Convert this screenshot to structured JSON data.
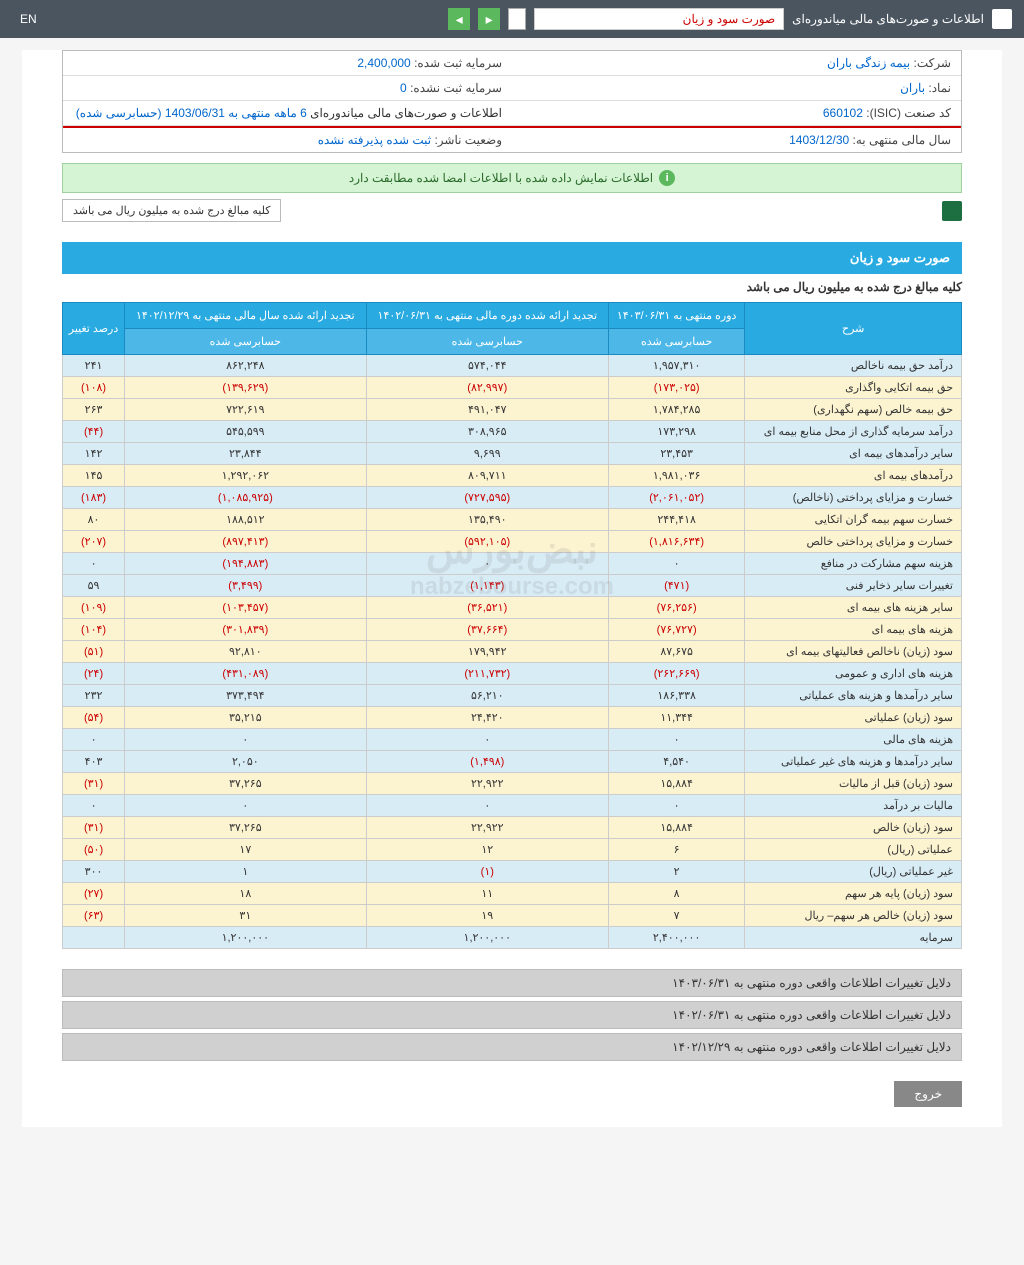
{
  "topbar": {
    "breadcrumb": "اطلاعات و صورت‌های مالی میاندوره‌ای",
    "doc_title": "صورت سود و زیان",
    "lang": "EN"
  },
  "info": {
    "company_label": "شرکت:",
    "company": "بیمه زندگی باران",
    "capital_reg_label": "سرمایه ثبت شده:",
    "capital_reg": "2,400,000",
    "symbol_label": "نماد:",
    "symbol": "باران",
    "capital_unreg_label": "سرمایه ثبت نشده:",
    "capital_unreg": "0",
    "isic_label": "کد صنعت (ISIC):",
    "isic": "660102",
    "report_label": "اطلاعات و صورت‌های مالی میاندوره‌ای",
    "report_period": "6 ماهه منتهی به 1403/06/31 (حسابرسی شده)",
    "year_end_label": "سال مالی منتهی به:",
    "year_end": "1403/12/30",
    "status_label": "وضعیت ناشر:",
    "status": "ثبت شده پذیرفته نشده"
  },
  "notice": "اطلاعات نمایش داده شده با اطلاعات امضا شده مطابقت دارد",
  "unit_notice": "کلیه مبالغ درج شده به میلیون ریال می باشد",
  "section": {
    "title": "صورت سود و زیان",
    "sub": "کلیه مبالغ درج شده به میلیون ریال می باشد"
  },
  "headers": {
    "desc": "شرح",
    "col1": "دوره منتهی به ۱۴۰۳/۰۶/۳۱",
    "col2": "تجدید ارائه شده دوره مالی منتهی به ۱۴۰۲/۰۶/۳۱",
    "col3": "تجدید ارائه شده سال مالی منتهی به ۱۴۰۲/۱۲/۲۹",
    "col4": "درصد تغییر",
    "audited": "حسابرسی شده"
  },
  "rows": [
    {
      "label": "درآمد حق بیمه ناخالص",
      "c1": "۱,۹۵۷,۳۱۰",
      "c2": "۵۷۴,۰۴۴",
      "c3": "۸۶۲,۲۴۸",
      "c4": "۲۴۱",
      "cls": "row-blue"
    },
    {
      "label": "حق بیمه اتکایی واگذاری",
      "c1": "(۱۷۳,۰۲۵)",
      "c2": "(۸۲,۹۹۷)",
      "c3": "(۱۳۹,۶۲۹)",
      "c4": "(۱۰۸)",
      "cls": "row-yellow",
      "neg": true
    },
    {
      "label": "حق بیمه خالص (سهم نگهداری)",
      "c1": "۱,۷۸۴,۲۸۵",
      "c2": "۴۹۱,۰۴۷",
      "c3": "۷۲۲,۶۱۹",
      "c4": "۲۶۳",
      "cls": "row-yellow"
    },
    {
      "label": "درآمد سرمایه گذاری از محل منابع بیمه ای",
      "c1": "۱۷۳,۲۹۸",
      "c2": "۳۰۸,۹۶۵",
      "c3": "۵۴۵,۵۹۹",
      "c4": "(۴۴)",
      "cls": "row-blue",
      "c4neg": true
    },
    {
      "label": "سایر درآمدهای بیمه ای",
      "c1": "۲۳,۴۵۳",
      "c2": "۹,۶۹۹",
      "c3": "۲۳,۸۴۴",
      "c4": "۱۴۲",
      "cls": "row-blue"
    },
    {
      "label": "درآمدهای بیمه ای",
      "c1": "۱,۹۸۱,۰۳۶",
      "c2": "۸۰۹,۷۱۱",
      "c3": "۱,۲۹۲,۰۶۲",
      "c4": "۱۴۵",
      "cls": "row-yellow"
    },
    {
      "label": "خسارت و مزایای پرداختی (ناخالص)",
      "c1": "(۲,۰۶۱,۰۵۲)",
      "c2": "(۷۲۷,۵۹۵)",
      "c3": "(۱,۰۸۵,۹۲۵)",
      "c4": "(۱۸۳)",
      "cls": "row-blue",
      "neg": true
    },
    {
      "label": "خسارت سهم بیمه گران اتکایی",
      "c1": "۲۴۴,۴۱۸",
      "c2": "۱۳۵,۴۹۰",
      "c3": "۱۸۸,۵۱۲",
      "c4": "۸۰",
      "cls": "row-yellow"
    },
    {
      "label": "خسارت و مزایای پرداختی خالص",
      "c1": "(۱,۸۱۶,۶۳۴)",
      "c2": "(۵۹۲,۱۰۵)",
      "c3": "(۸۹۷,۴۱۳)",
      "c4": "(۲۰۷)",
      "cls": "row-yellow",
      "neg": true
    },
    {
      "label": "هزینه سهم مشارکت در منافع",
      "c1": "۰",
      "c2": "۰",
      "c3": "(۱۹۴,۸۸۳)",
      "c4": "۰",
      "cls": "row-blue",
      "c3neg": true
    },
    {
      "label": "تغییرات سایر ذخایر فنی",
      "c1": "(۴۷۱)",
      "c2": "(۱,۱۴۳)",
      "c3": "(۳,۴۹۹)",
      "c4": "۵۹",
      "cls": "row-blue",
      "c1neg": true,
      "c2neg": true,
      "c3neg": true
    },
    {
      "label": "سایر هزینه های بیمه ای",
      "c1": "(۷۶,۲۵۶)",
      "c2": "(۳۶,۵۲۱)",
      "c3": "(۱۰۳,۴۵۷)",
      "c4": "(۱۰۹)",
      "cls": "row-yellow",
      "neg": true
    },
    {
      "label": "هزینه های بیمه ای",
      "c1": "(۷۶,۷۲۷)",
      "c2": "(۳۷,۶۶۴)",
      "c3": "(۳۰۱,۸۳۹)",
      "c4": "(۱۰۴)",
      "cls": "row-yellow",
      "neg": true
    },
    {
      "label": "سود (زیان) ناخالص فعالیتهای بیمه ای",
      "c1": "۸۷,۶۷۵",
      "c2": "۱۷۹,۹۴۲",
      "c3": "۹۲,۸۱۰",
      "c4": "(۵۱)",
      "cls": "row-yellow",
      "c4neg": true
    },
    {
      "label": "هزینه های اداری و عمومی",
      "c1": "(۲۶۲,۶۶۹)",
      "c2": "(۲۱۱,۷۳۲)",
      "c3": "(۴۳۱,۰۸۹)",
      "c4": "(۲۴)",
      "cls": "row-blue",
      "neg": true
    },
    {
      "label": "سایر درآمدها و هزینه های عملیاتی",
      "c1": "۱۸۶,۳۳۸",
      "c2": "۵۶,۲۱۰",
      "c3": "۳۷۳,۴۹۴",
      "c4": "۲۳۲",
      "cls": "row-blue"
    },
    {
      "label": "سود (زیان) عملیاتی",
      "c1": "۱۱,۳۴۴",
      "c2": "۲۴,۴۲۰",
      "c3": "۳۵,۲۱۵",
      "c4": "(۵۴)",
      "cls": "row-yellow",
      "c4neg": true
    },
    {
      "label": "هزینه های مالی",
      "c1": "۰",
      "c2": "۰",
      "c3": "۰",
      "c4": "۰",
      "cls": "row-blue"
    },
    {
      "label": "سایر درآمدها و هزینه های غیر عملیاتی",
      "c1": "۴,۵۴۰",
      "c2": "(۱,۴۹۸)",
      "c3": "۲,۰۵۰",
      "c4": "۴۰۳",
      "cls": "row-blue",
      "c2neg": true
    },
    {
      "label": "سود (زیان) قبل از مالیات",
      "c1": "۱۵,۸۸۴",
      "c2": "۲۲,۹۲۲",
      "c3": "۳۷,۲۶۵",
      "c4": "(۳۱)",
      "cls": "row-yellow",
      "c4neg": true
    },
    {
      "label": "مالیات بر درآمد",
      "c1": "۰",
      "c2": "۰",
      "c3": "۰",
      "c4": "۰",
      "cls": "row-blue"
    },
    {
      "label": "سود (زیان) خالص",
      "c1": "۱۵,۸۸۴",
      "c2": "۲۲,۹۲۲",
      "c3": "۳۷,۲۶۵",
      "c4": "(۳۱)",
      "cls": "row-yellow",
      "c4neg": true
    },
    {
      "label": "عملیاتی (ریال)",
      "c1": "۶",
      "c2": "۱۲",
      "c3": "۱۷",
      "c4": "(۵۰)",
      "cls": "row-yellow",
      "c4neg": true
    },
    {
      "label": "غیر عملیاتی (ریال)",
      "c1": "۲",
      "c2": "(۱)",
      "c3": "۱",
      "c4": "۳۰۰",
      "cls": "row-blue",
      "c2neg": true
    },
    {
      "label": "سود (زیان) پایه هر سهم",
      "c1": "۸",
      "c2": "۱۱",
      "c3": "۱۸",
      "c4": "(۲۷)",
      "cls": "row-yellow",
      "c4neg": true
    },
    {
      "label": "سود (زیان) خالص هر سهم– ریال",
      "c1": "۷",
      "c2": "۱۹",
      "c3": "۳۱",
      "c4": "(۶۳)",
      "cls": "row-yellow",
      "c4neg": true
    },
    {
      "label": "سرمایه",
      "c1": "۲,۴۰۰,۰۰۰",
      "c2": "۱,۲۰۰,۰۰۰",
      "c3": "۱,۲۰۰,۰۰۰",
      "c4": "",
      "cls": "row-blue"
    }
  ],
  "footers": [
    "دلایل تغییرات اطلاعات واقعی دوره منتهی به ۱۴۰۳/۰۶/۳۱",
    "دلایل تغییرات اطلاعات واقعی دوره منتهی به ۱۴۰۲/۰۶/۳۱",
    "دلایل تغییرات اطلاعات واقعی دوره منتهی به ۱۴۰۲/۱۲/۲۹"
  ],
  "exit_btn": "خروج",
  "watermark1": "نبض‌بورس",
  "watermark2": "nabzebourse.com"
}
